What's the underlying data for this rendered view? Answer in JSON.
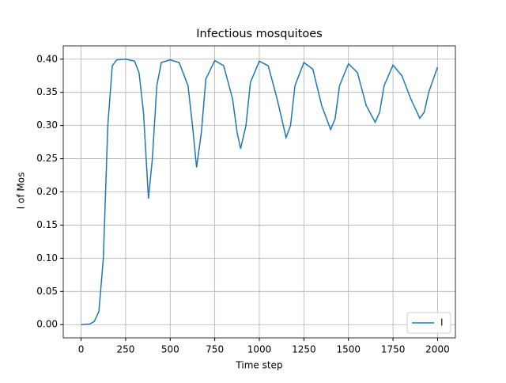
{
  "chart_data": {
    "type": "line",
    "title": "Infectious mosquitoes",
    "xlabel": "Time step",
    "ylabel": "I of Mos",
    "x": [
      0,
      50,
      75,
      100,
      125,
      150,
      175,
      200,
      250,
      300,
      325,
      350,
      378,
      400,
      425,
      450,
      500,
      550,
      600,
      625,
      648,
      675,
      700,
      750,
      800,
      850,
      875,
      895,
      925,
      950,
      1000,
      1050,
      1100,
      1150,
      1175,
      1200,
      1250,
      1300,
      1350,
      1400,
      1425,
      1450,
      1500,
      1550,
      1600,
      1650,
      1675,
      1700,
      1750,
      1800,
      1850,
      1900,
      1925,
      1950,
      2000
    ],
    "series": [
      {
        "name": "I",
        "color": "#1f77b4",
        "values": [
          0,
          0.001,
          0.005,
          0.02,
          0.1,
          0.3,
          0.39,
          0.399,
          0.4,
          0.397,
          0.38,
          0.32,
          0.19,
          0.25,
          0.36,
          0.395,
          0.399,
          0.395,
          0.36,
          0.3,
          0.237,
          0.29,
          0.37,
          0.398,
          0.39,
          0.34,
          0.29,
          0.265,
          0.3,
          0.365,
          0.397,
          0.39,
          0.34,
          0.282,
          0.3,
          0.36,
          0.395,
          0.385,
          0.33,
          0.294,
          0.31,
          0.36,
          0.393,
          0.38,
          0.33,
          0.305,
          0.32,
          0.36,
          0.391,
          0.375,
          0.34,
          0.311,
          0.32,
          0.35,
          0.388
        ]
      }
    ],
    "xlim": [
      -100,
      2100
    ],
    "ylim": [
      -0.02,
      0.42
    ],
    "xticks": [
      0,
      250,
      500,
      750,
      1000,
      1250,
      1500,
      1750,
      2000
    ],
    "yticks": [
      {
        "value": 0,
        "label": "0.00"
      },
      {
        "value": 0.05,
        "label": "0.05"
      },
      {
        "value": 0.1,
        "label": "0.10"
      },
      {
        "value": 0.15,
        "label": "0.15"
      },
      {
        "value": 0.2,
        "label": "0.20"
      },
      {
        "value": 0.25,
        "label": "0.25"
      },
      {
        "value": 0.3,
        "label": "0.30"
      },
      {
        "value": 0.35,
        "label": "0.35"
      },
      {
        "value": 0.4,
        "label": "0.40"
      }
    ],
    "grid": true,
    "legend": "lower right"
  }
}
